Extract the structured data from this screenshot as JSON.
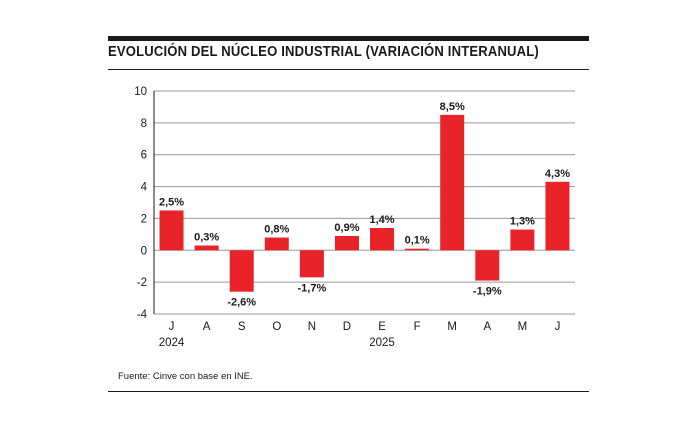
{
  "chart_data": {
    "type": "bar",
    "title": "EVOLUCIÓN DEL NÚCLEO INDUSTRIAL (VARIACIÓN INTERANUAL)",
    "categories": [
      "J",
      "A",
      "S",
      "O",
      "N",
      "D",
      "E",
      "F",
      "M",
      "A",
      "M",
      "J"
    ],
    "values": [
      2.5,
      0.3,
      -2.6,
      0.8,
      -1.7,
      0.9,
      1.4,
      0.1,
      8.5,
      -1.9,
      1.3,
      4.3
    ],
    "data_labels": [
      "2,5%",
      "0,3%",
      "-2,6%",
      "0,8%",
      "-1,7%",
      "0,9%",
      "1,4%",
      "0,1%",
      "8,5%",
      "-1,9%",
      "1,3%",
      "4,3%"
    ],
    "year_labels": [
      {
        "category_index": 0,
        "text": "2024"
      },
      {
        "category_index": 6,
        "text": "2025"
      }
    ],
    "ylim": [
      -4,
      10
    ],
    "yticks": [
      -4,
      -2,
      0,
      2,
      4,
      6,
      8,
      10
    ],
    "grid": true,
    "xlabel": "",
    "ylabel": "",
    "bar_color": "#e8232a",
    "grid_color": "#9a9a9a"
  },
  "source": "Fuente: Cinve con base en INE."
}
